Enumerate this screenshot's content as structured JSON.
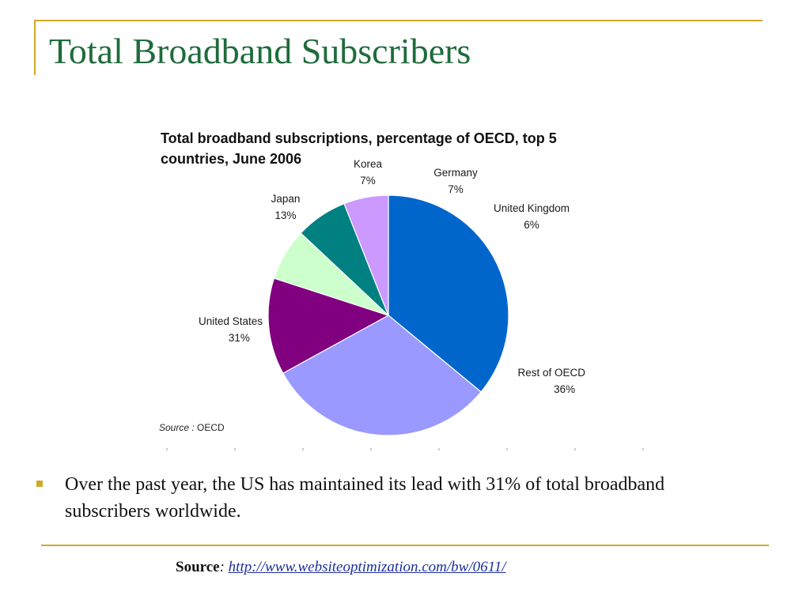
{
  "slide": {
    "title": "Total Broadband Subscribers",
    "bullet": "Over the past year, the US has maintained its lead with 31% of total broadband subscribers worldwide.",
    "footer": {
      "source_label": "Source",
      "separator": ":",
      "link": "http://www.websiteoptimization.com/bw/0611/"
    }
  },
  "colors": {
    "accent_gold": "#cfa92a",
    "title_green": "#1f6b3c",
    "link_blue": "#1c2f9e"
  },
  "chart_data": {
    "type": "pie",
    "title_line1": "Total broadband subscriptions, percentage of OECD, top 5",
    "title_line2": "countries, June 2006",
    "source_label": "Source :",
    "source_value": "OECD",
    "slices": [
      {
        "name": "Rest of OECD",
        "value": 36,
        "label": "36%",
        "color": "#0066cc"
      },
      {
        "name": "United States",
        "value": 31,
        "label": "31%",
        "color": "#9999ff"
      },
      {
        "name": "Japan",
        "value": 13,
        "label": "13%",
        "color": "#800080"
      },
      {
        "name": "Korea",
        "value": 7,
        "label": "7%",
        "color": "#ccffcc"
      },
      {
        "name": "Germany",
        "value": 7,
        "label": "7%",
        "color": "#008080"
      },
      {
        "name": "United Kingdom",
        "value": 6,
        "label": "6%",
        "color": "#cc99ff"
      }
    ]
  }
}
